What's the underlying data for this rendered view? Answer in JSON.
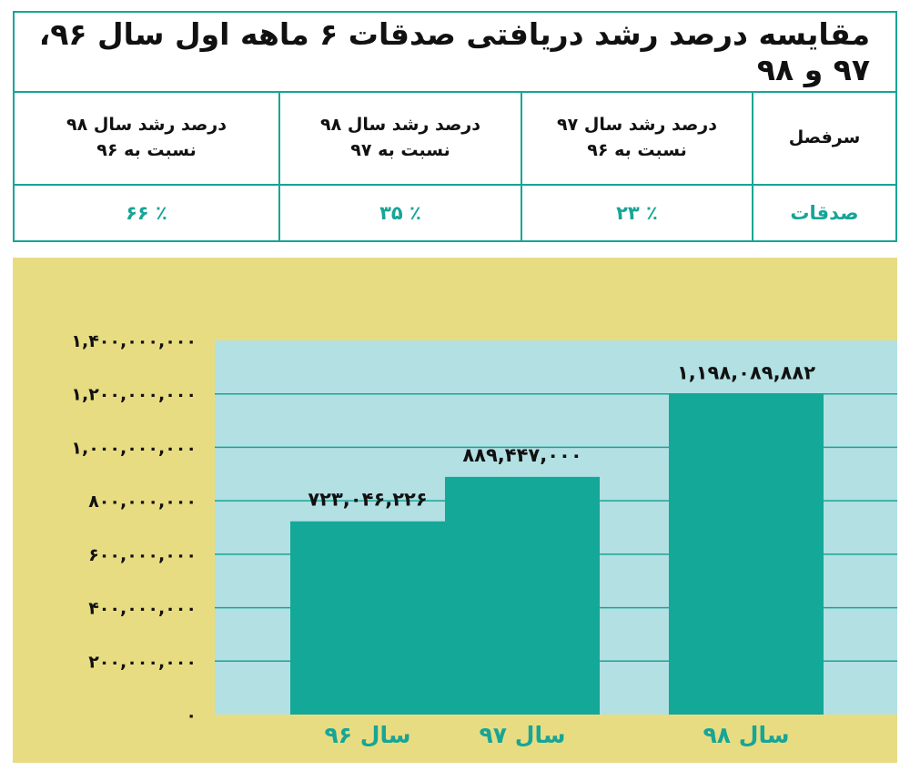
{
  "table": {
    "title": "مقایسه درصد رشد دریافتی صدقات ۶ ماهه اول سال ۹۶، ۹۷ و ۹۸",
    "headers": [
      {
        "line1": "سرفصل",
        "line2": ""
      },
      {
        "line1": "درصد رشد سال ۹۷",
        "line2": "نسبت به ۹۶"
      },
      {
        "line1": "درصد رشد سال ۹۸",
        "line2": "نسبت به ۹۷"
      },
      {
        "line1": "درصد رشد سال ۹۸",
        "line2": "نسبت به ۹۶"
      }
    ],
    "row": [
      "صدقات",
      "٪ ۲۳",
      "٪ ۳۵",
      "٪ ۶۶"
    ]
  },
  "chart_data": {
    "type": "bar",
    "categories": [
      "سال ۹۶",
      "سال ۹۷",
      "سال ۹۸"
    ],
    "values": [
      723046226,
      889447000,
      1198089882
    ],
    "data_labels": [
      "۷۲۳,۰۴۶,۲۲۶",
      "۸۸۹,۴۴۷,۰۰۰",
      "۱,۱۹۸,۰۸۹,۸۸۲"
    ],
    "y_ticks": [
      0,
      200000000,
      400000000,
      600000000,
      800000000,
      1000000000,
      1200000000,
      1400000000
    ],
    "y_tick_labels": [
      "۰",
      "۲۰۰,۰۰۰,۰۰۰",
      "۴۰۰,۰۰۰,۰۰۰",
      "۶۰۰,۰۰۰,۰۰۰",
      "۸۰۰,۰۰۰,۰۰۰",
      "۱,۰۰۰,۰۰۰,۰۰۰",
      "۱,۲۰۰,۰۰۰,۰۰۰",
      "۱,۴۰۰,۰۰۰,۰۰۰"
    ],
    "ylim": [
      0,
      1400000000
    ],
    "grid": true,
    "colors": {
      "outer_background": "#e8dc82",
      "plot_background": "#b3e0e3",
      "bar": "#14a898",
      "grid": "#17a596",
      "category_label": "#17a596"
    }
  }
}
